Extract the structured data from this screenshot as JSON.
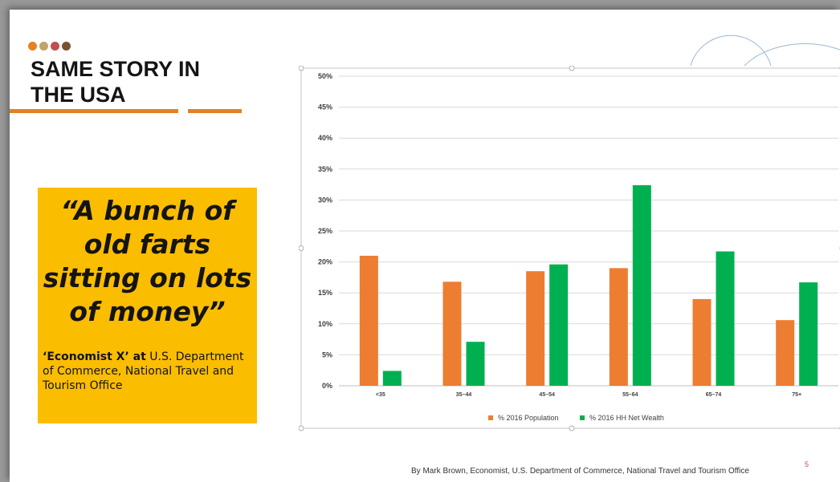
{
  "slide": {
    "dots_colors": [
      "#e58124",
      "#c2a36b",
      "#c0504d",
      "#7a5230"
    ],
    "accent_color": "#e58124",
    "title_lines": [
      "SAME STORY IN",
      "THE USA"
    ],
    "quote": {
      "lines": [
        "“A bunch of",
        "old farts",
        "sitting on lots",
        "of money”"
      ],
      "attribution_bold": "‘Economist X’ at",
      "attribution_rest": " U.S. Department of Commerce, National Travel and Tourism Office",
      "box_color": "#fbbd00"
    },
    "footer": "By Mark Brown, Economist, U.S. Department of Commerce, National Travel and Tourism Office",
    "slide_number": "5"
  },
  "chart_data": {
    "type": "bar",
    "categories": [
      "<35",
      "35–44",
      "45–54",
      "55–64",
      "65–74",
      "75+"
    ],
    "series": [
      {
        "name": "% 2016 Population",
        "color": "#ed7d31",
        "values": [
          21.0,
          16.8,
          18.5,
          19.0,
          14.0,
          10.6
        ]
      },
      {
        "name": "% 2016 HH Net Wealth",
        "color": "#00b050",
        "values": [
          2.4,
          7.1,
          19.6,
          32.4,
          21.7,
          16.7
        ]
      }
    ],
    "yticks": [
      "0%",
      "5%",
      "10%",
      "15%",
      "20%",
      "25%",
      "30%",
      "35%",
      "40%",
      "45%",
      "50%"
    ],
    "ylim": [
      0,
      50
    ],
    "grid": true,
    "legend_position": "bottom",
    "title": "",
    "xlabel": "",
    "ylabel": ""
  }
}
